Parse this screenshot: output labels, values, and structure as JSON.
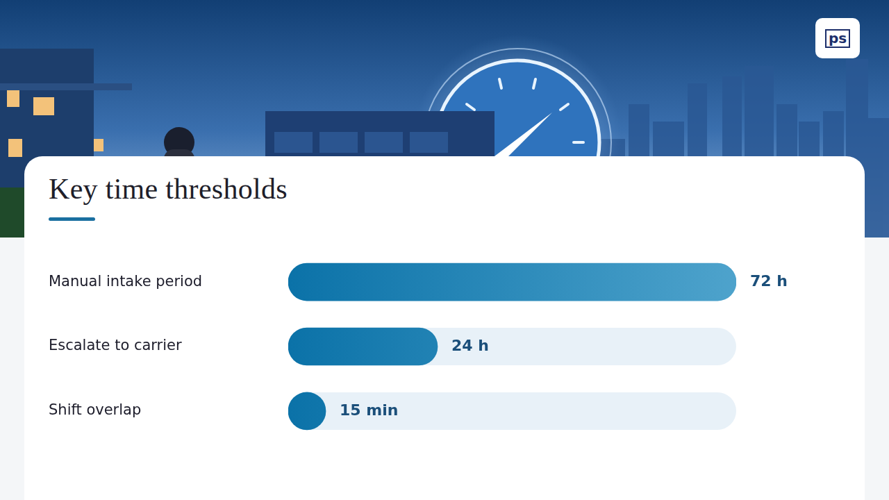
{
  "logo": "ps",
  "chart_data": {
    "type": "bar",
    "orientation": "horizontal",
    "title": "Key time thresholds",
    "categories": [
      "Manual intake period",
      "Escalate to carrier",
      "Shift overlap"
    ],
    "values": [
      72,
      24,
      0.25
    ],
    "value_labels": [
      "72 h",
      "24 h",
      "15 min"
    ],
    "xlim": [
      0,
      72
    ],
    "color": "#0b72a8",
    "data_labels": true,
    "tick_labels": "y",
    "grid": false
  }
}
